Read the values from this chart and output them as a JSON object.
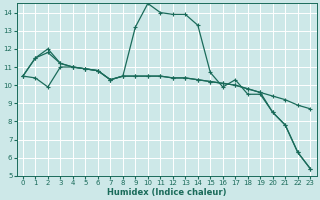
{
  "xlabel": "Humidex (Indice chaleur)",
  "bg_color": "#cde8e8",
  "grid_color": "#ffffff",
  "line_color": "#1a6b5a",
  "xlim": [
    0,
    23
  ],
  "ylim": [
    5,
    14.5
  ],
  "xticks": [
    0,
    1,
    2,
    3,
    4,
    5,
    6,
    7,
    8,
    9,
    10,
    11,
    12,
    13,
    14,
    15,
    16,
    17,
    18,
    19,
    20,
    21,
    22,
    23
  ],
  "yticks": [
    5,
    6,
    7,
    8,
    9,
    10,
    11,
    12,
    13,
    14
  ],
  "series1_x": [
    0,
    1,
    2,
    3,
    4,
    5,
    6,
    7,
    8,
    9,
    10,
    11,
    12,
    13,
    14,
    15,
    16,
    17,
    18,
    19,
    20,
    21,
    22,
    23
  ],
  "series1_y": [
    10.5,
    11.5,
    11.8,
    11.2,
    11.0,
    10.9,
    10.8,
    10.3,
    10.5,
    13.2,
    14.5,
    14.0,
    13.9,
    13.9,
    13.3,
    10.7,
    9.9,
    10.3,
    9.5,
    9.5,
    8.5,
    7.8,
    6.3,
    5.4
  ],
  "series2_x": [
    0,
    1,
    2,
    3,
    4,
    5,
    6,
    7,
    8,
    9,
    10,
    11,
    12,
    13,
    14,
    15,
    16,
    17,
    18,
    19,
    20,
    21,
    22,
    23
  ],
  "series2_y": [
    10.5,
    11.5,
    12.0,
    11.2,
    11.0,
    10.9,
    10.8,
    10.3,
    10.5,
    10.5,
    10.5,
    10.5,
    10.4,
    10.4,
    10.3,
    10.2,
    10.1,
    10.0,
    9.8,
    9.6,
    9.4,
    9.2,
    8.9,
    8.7
  ],
  "series3_x": [
    0,
    1,
    2,
    3,
    4,
    5,
    6,
    7,
    8,
    9,
    10,
    11,
    12,
    13,
    14,
    15,
    16,
    17,
    18,
    19,
    20,
    21,
    22,
    23
  ],
  "series3_y": [
    10.5,
    10.4,
    9.9,
    11.0,
    11.0,
    10.9,
    10.8,
    10.3,
    10.5,
    10.5,
    10.5,
    10.5,
    10.4,
    10.4,
    10.3,
    10.2,
    10.1,
    10.0,
    9.8,
    9.6,
    8.5,
    7.8,
    6.3,
    5.4
  ]
}
